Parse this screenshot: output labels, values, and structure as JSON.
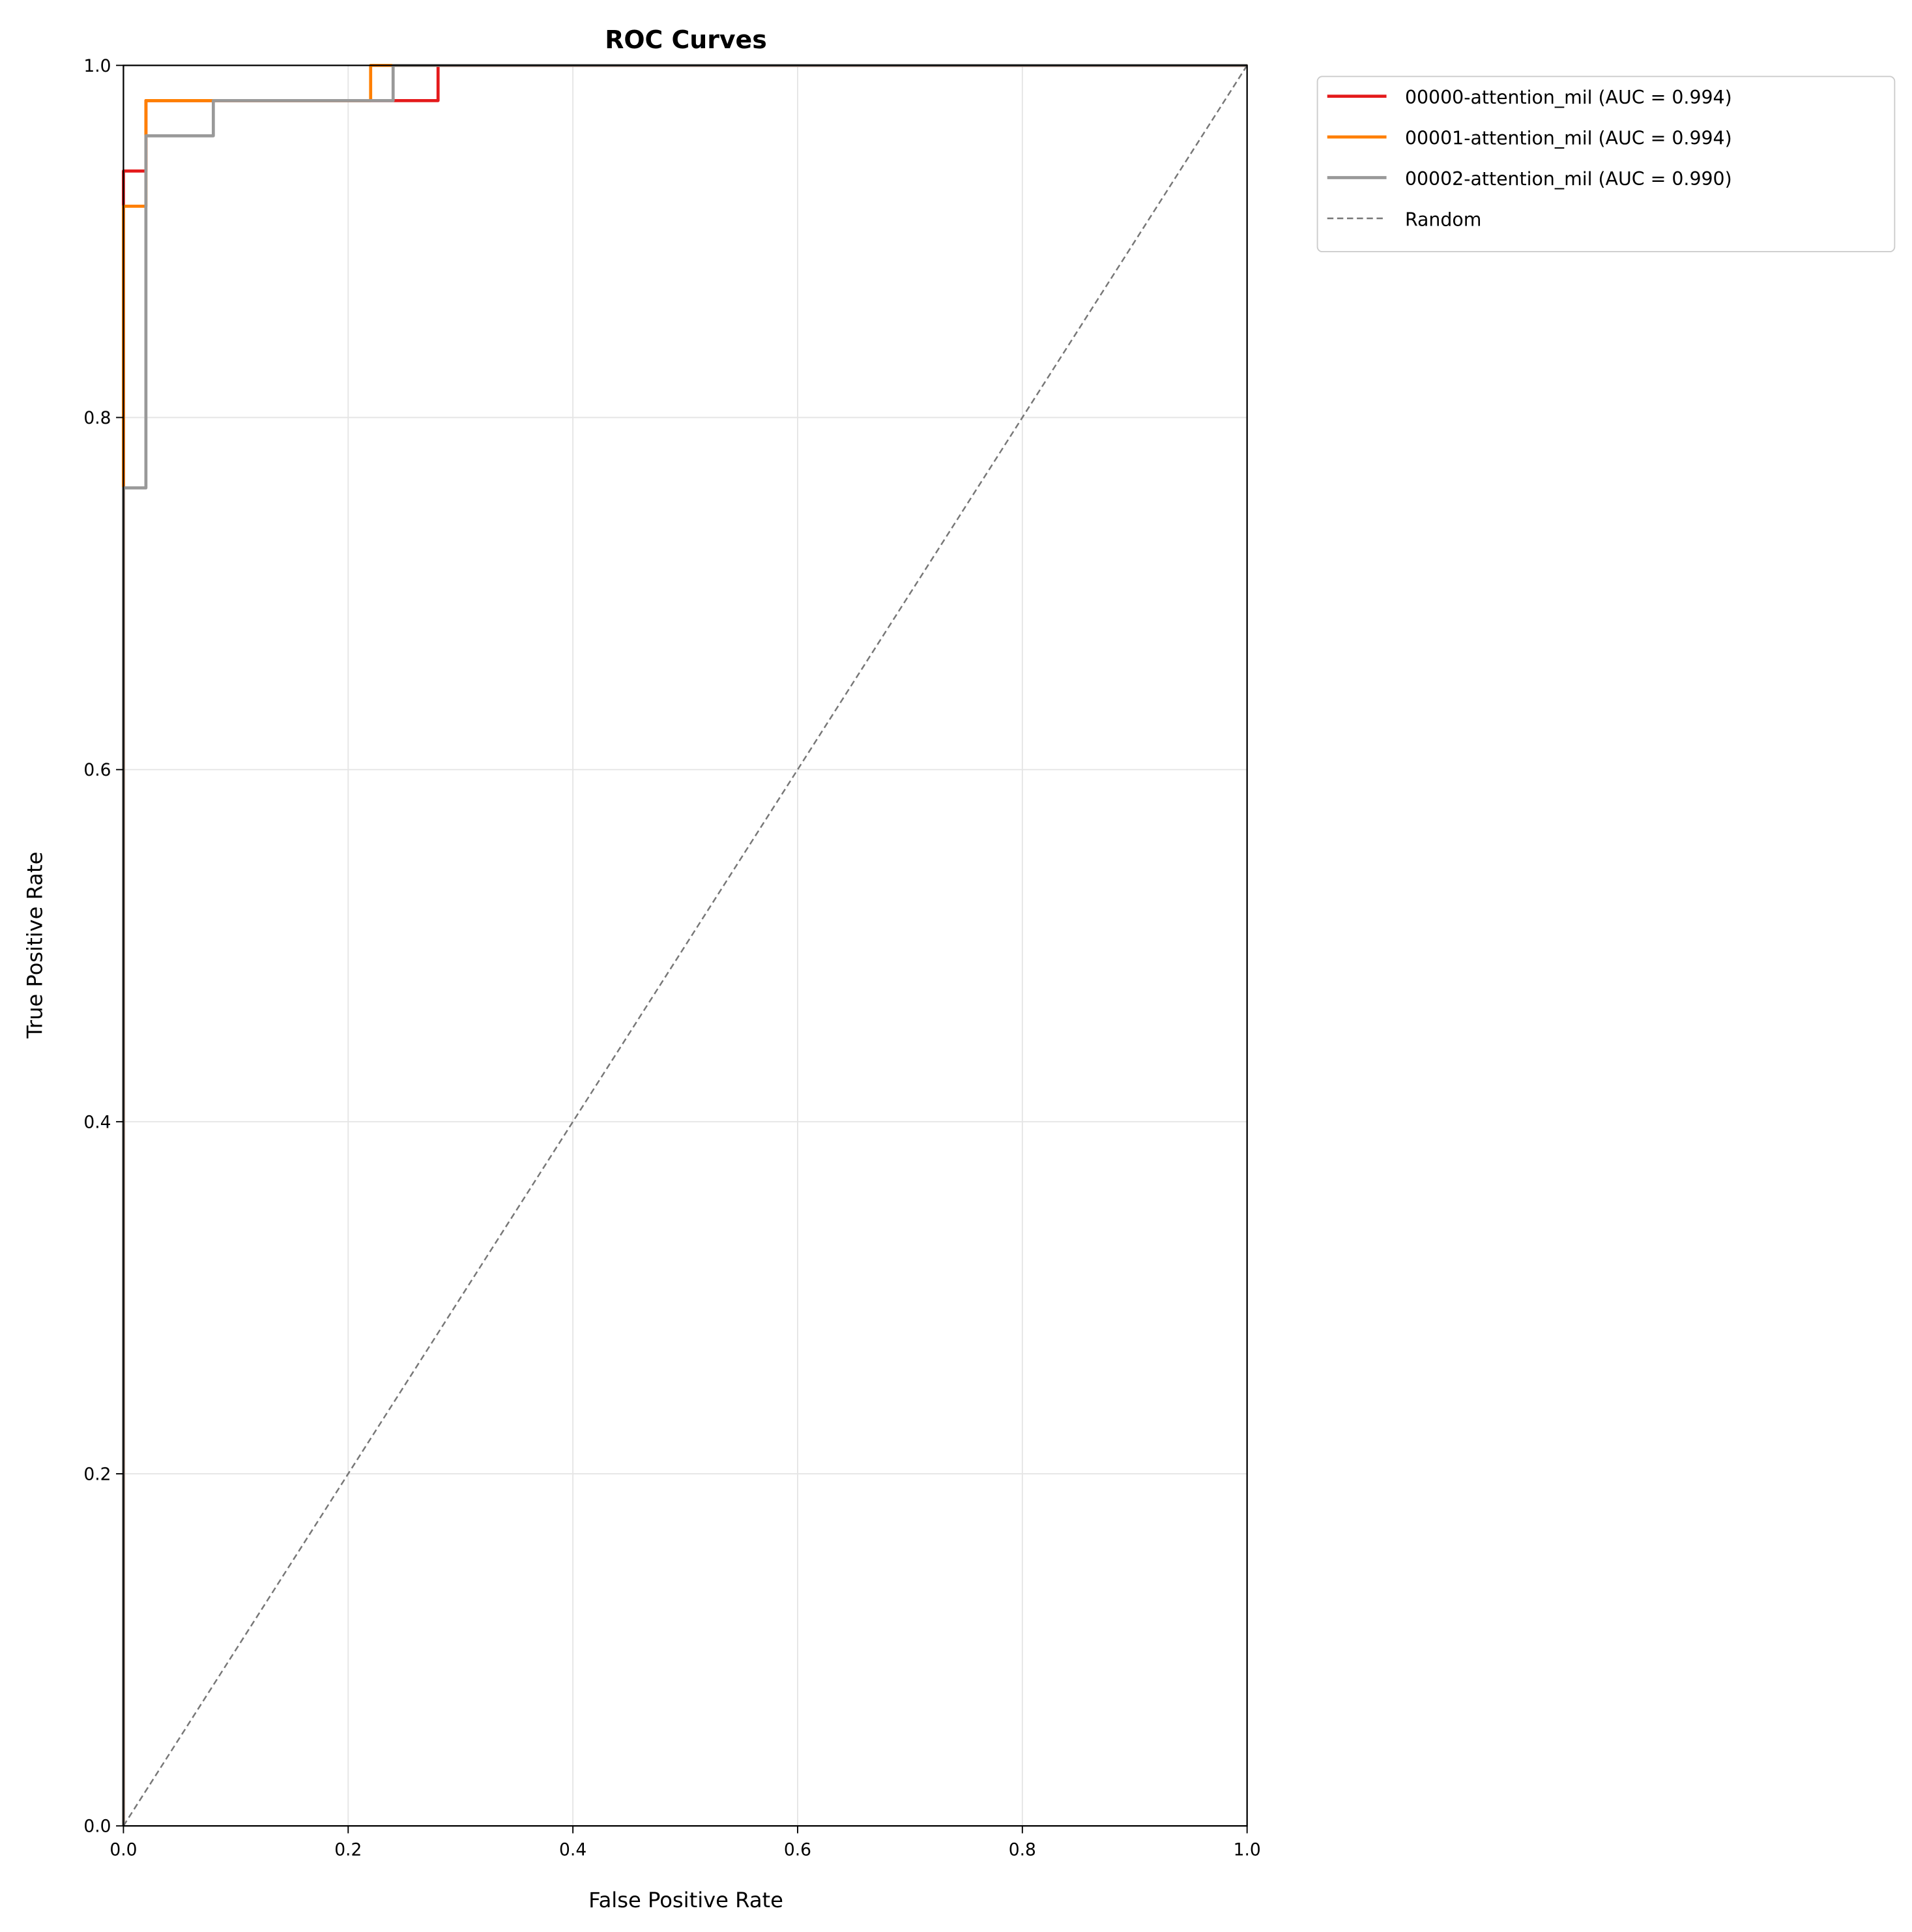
{
  "chart_data": {
    "type": "line",
    "title": "ROC Curves",
    "xlabel": "False Positive Rate",
    "ylabel": "True Positive Rate",
    "xlim": [
      0,
      1
    ],
    "ylim": [
      0,
      1
    ],
    "grid": true,
    "legend_placement": "outside-top-right",
    "xticks": [
      "0.0",
      "0.2",
      "0.4",
      "0.6",
      "0.8",
      "1.0"
    ],
    "yticks": [
      "0.0",
      "0.2",
      "0.4",
      "0.6",
      "0.8",
      "1.0"
    ],
    "series": [
      {
        "name": "00000-attention_mil (AUC = 0.994)",
        "color": "#e41a1c",
        "x": [
          0,
          0,
          0.02,
          0.02,
          0.28,
          0.28,
          1
        ],
        "y": [
          0,
          0.94,
          0.94,
          0.98,
          0.98,
          1,
          1
        ]
      },
      {
        "name": "00001-attention_mil (AUC = 0.994)",
        "color": "#ff7f00",
        "x": [
          0,
          0,
          0.02,
          0.02,
          0.22,
          0.22,
          1
        ],
        "y": [
          0,
          0.92,
          0.92,
          0.98,
          0.98,
          1,
          1
        ]
      },
      {
        "name": "00002-attention_mil (AUC = 0.990)",
        "color": "#999999",
        "x": [
          0,
          0,
          0.02,
          0.02,
          0.08,
          0.08,
          0.24,
          0.24,
          1
        ],
        "y": [
          0,
          0.76,
          0.76,
          0.96,
          0.96,
          0.98,
          0.98,
          1,
          1
        ]
      },
      {
        "name": "Random",
        "color": "#777777",
        "dashed": true,
        "x": [
          0,
          1
        ],
        "y": [
          0,
          1
        ]
      }
    ]
  }
}
